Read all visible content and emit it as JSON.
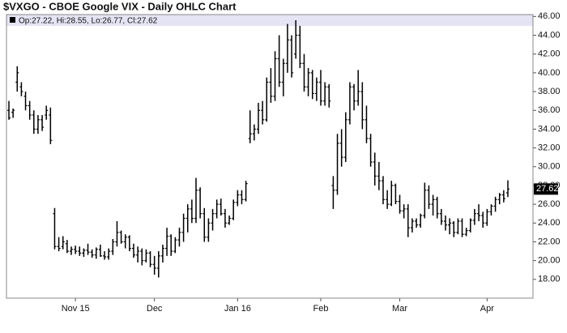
{
  "chart_data": {
    "type": "ohlc",
    "title": "$VXGO - CBOE Google VIX - Daily OHLC Chart",
    "info_label": "Op:27.22, Hi:28.55, Lo:26.77, Cl:27.62",
    "color": "#000000",
    "categories": [
      null,
      null,
      null,
      null,
      null,
      null,
      null,
      null,
      null,
      null,
      null,
      null,
      null,
      null,
      null,
      null,
      "Nov 15",
      null,
      null,
      null,
      null,
      null,
      null,
      null,
      null,
      null,
      null,
      null,
      null,
      null,
      null,
      null,
      null,
      null,
      null,
      "Dec",
      null,
      null,
      null,
      null,
      null,
      null,
      null,
      null,
      null,
      null,
      null,
      null,
      null,
      null,
      null,
      null,
      null,
      null,
      null,
      "Jan 16",
      null,
      null,
      null,
      null,
      null,
      null,
      null,
      null,
      null,
      null,
      null,
      null,
      null,
      null,
      null,
      null,
      null,
      null,
      null,
      "Feb",
      null,
      null,
      null,
      null,
      null,
      null,
      null,
      null,
      null,
      null,
      null,
      null,
      null,
      null,
      null,
      null,
      null,
      null,
      "Mar",
      null,
      null,
      null,
      null,
      null,
      null,
      null,
      null,
      null,
      null,
      null,
      null,
      null,
      null,
      null,
      null,
      null,
      null,
      null,
      null,
      "Apr",
      null,
      null,
      null,
      null,
      null
    ],
    "open": [
      36,
      35.8,
      39,
      38.5,
      37.5,
      36.5,
      35.5,
      34,
      35,
      35.5,
      35.5,
      25,
      21.5,
      21.5,
      21.8,
      21,
      21.2,
      21,
      20.8,
      21.1,
      20.9,
      20.6,
      21.2,
      20.5,
      20.4,
      21,
      22,
      23,
      22,
      22.5,
      21.3,
      20.6,
      21,
      20,
      20.8,
      19.6,
      19.2,
      20.5,
      21.3,
      22.6,
      21,
      22.2,
      23,
      24.5,
      25.5,
      24.5,
      27.5,
      25,
      22.5,
      24,
      25,
      26,
      25,
      24,
      24.5,
      26.2,
      27,
      26.5,
      33,
      33.5,
      34,
      36,
      35,
      39,
      37.5,
      41.5,
      39,
      41,
      43.5,
      42,
      44,
      41,
      38.5,
      40,
      37.8,
      39,
      37,
      38.5,
      28,
      27.5,
      32.5,
      31,
      35,
      38.5,
      37,
      38,
      35,
      33,
      30.5,
      29,
      28.5,
      26.5,
      26,
      28,
      26.3,
      25.3,
      25.5,
      23.5,
      24.2,
      23.8,
      24.8,
      27.5,
      26,
      26.5,
      25,
      24.2,
      23.8,
      24,
      23,
      24.2,
      22.8,
      23.2,
      24.3,
      25,
      24.8,
      24,
      25.2,
      25.8,
      26.5,
      27,
      27.22
    ],
    "high": [
      37,
      36.2,
      40.7,
      39,
      38,
      37,
      36,
      35.5,
      35.5,
      36.5,
      36.3,
      25.6,
      22.5,
      22.6,
      22.2,
      21.5,
      21.6,
      21.5,
      21.3,
      21.8,
      21.2,
      21.4,
      21.7,
      21,
      21.3,
      22.3,
      24.2,
      23.2,
      22.8,
      22.7,
      21.8,
      21.5,
      21.3,
      21.2,
      21,
      20.5,
      21,
      21.7,
      23.5,
      22.8,
      22.5,
      23.5,
      25,
      26,
      26.5,
      28.8,
      27.8,
      25.6,
      24.5,
      25.5,
      26.5,
      26.6,
      25.5,
      24.8,
      26.5,
      27.5,
      27.5,
      28.5,
      36,
      34.5,
      36.8,
      37,
      39.5,
      40.5,
      42.3,
      44,
      41.5,
      45.2,
      44,
      45.6,
      45,
      42,
      40.5,
      40.3,
      39.5,
      40.3,
      39,
      38.8,
      29,
      33.5,
      34,
      35.8,
      39,
      38.8,
      40.3,
      39,
      36.5,
      33.5,
      31.5,
      30.5,
      29,
      27.5,
      28.5,
      28.2,
      27,
      26,
      26,
      24.5,
      24.5,
      25,
      28.3,
      28,
      27,
      26.8,
      25.5,
      24.8,
      24.5,
      24.2,
      24.5,
      24.5,
      23.5,
      24.5,
      25.5,
      26,
      25.2,
      25.5,
      26,
      26.8,
      27.2,
      27.5,
      28.55
    ],
    "low": [
      35,
      35.2,
      38,
      37.5,
      36,
      35,
      33.5,
      33.5,
      33.8,
      35,
      32.4,
      21.2,
      21,
      21.2,
      20.8,
      20.6,
      20.7,
      20.5,
      20.4,
      20.6,
      20.3,
      20.2,
      20.4,
      20.1,
      20.1,
      20.6,
      21.5,
      21.8,
      21.3,
      21,
      20.3,
      19.8,
      19.5,
      19.8,
      19.3,
      18.5,
      18.2,
      19.8,
      20.5,
      20.5,
      20.8,
      21.5,
      22,
      23,
      24,
      24,
      24.5,
      22,
      22,
      23.2,
      24.5,
      24.8,
      23.5,
      23.8,
      24.3,
      25.8,
      26,
      26.3,
      32.5,
      32.8,
      33.5,
      34.5,
      34.8,
      36.8,
      37,
      38.5,
      37.5,
      40,
      39.5,
      41.5,
      40.5,
      38,
      37.5,
      37.2,
      37,
      36.5,
      36.5,
      36.3,
      25.5,
      27,
      30,
      30.5,
      34.5,
      36,
      36.5,
      34,
      32.5,
      30,
      28,
      27.5,
      26,
      25.5,
      25.8,
      26,
      25,
      24.5,
      22.5,
      23,
      23.5,
      23.5,
      24.5,
      25.5,
      24.8,
      24.5,
      23.8,
      23.2,
      22.8,
      22.5,
      22.8,
      22.5,
      22.6,
      23,
      23.8,
      24.2,
      23.5,
      23.7,
      24.8,
      25.2,
      26,
      26.2,
      26.77
    ],
    "close": [
      35.2,
      36,
      40,
      38,
      36.5,
      35.5,
      34,
      35,
      34.2,
      36,
      32.8,
      21.5,
      21.3,
      22,
      21,
      21.2,
      21,
      20.8,
      21.1,
      20.9,
      20.6,
      21.2,
      20.5,
      20.4,
      21,
      22,
      23,
      22,
      22.5,
      21.3,
      20.6,
      21,
      20,
      20.8,
      19.6,
      19.2,
      20.5,
      21.3,
      22.6,
      21,
      22.2,
      23,
      24.5,
      25.5,
      24.5,
      27.5,
      25,
      22.5,
      24,
      25,
      26,
      25,
      24,
      24.5,
      26.2,
      27,
      26.5,
      28.2,
      33.5,
      34,
      36,
      35,
      39,
      37.5,
      41.5,
      39,
      41,
      43.5,
      40,
      44,
      41,
      38.5,
      40,
      37.8,
      39,
      37,
      38.5,
      37,
      27.5,
      32.5,
      31,
      35,
      38.5,
      37,
      38,
      35,
      33,
      30.5,
      29,
      28.5,
      26.5,
      26,
      28,
      26.3,
      25.3,
      25.5,
      23.5,
      24.2,
      23.8,
      24.8,
      27.5,
      26,
      26.5,
      25,
      24.2,
      23.8,
      24,
      23,
      24.2,
      22.8,
      23.2,
      24.3,
      25,
      24.8,
      24,
      25.2,
      25.8,
      26.5,
      27,
      26.6,
      27.62
    ],
    "ylim": [
      16,
      46.2
    ],
    "yticks": [
      {
        "value": 18,
        "label": "18.00"
      },
      {
        "value": 20,
        "label": "20.00"
      },
      {
        "value": 22,
        "label": "22.00"
      },
      {
        "value": 24,
        "label": "24.00"
      },
      {
        "value": 26,
        "label": "26.00"
      },
      {
        "value": 28,
        "label": "28.00"
      },
      {
        "value": 30,
        "label": "30.00"
      },
      {
        "value": 32,
        "label": "32.00"
      },
      {
        "value": 34,
        "label": "34.00"
      },
      {
        "value": 36,
        "label": "36.00"
      },
      {
        "value": 38,
        "label": "38.00"
      },
      {
        "value": 40,
        "label": "40.00"
      },
      {
        "value": 42,
        "label": "42.00"
      },
      {
        "value": 44,
        "label": "44.00"
      },
      {
        "value": 46,
        "label": "46.00"
      }
    ]
  }
}
